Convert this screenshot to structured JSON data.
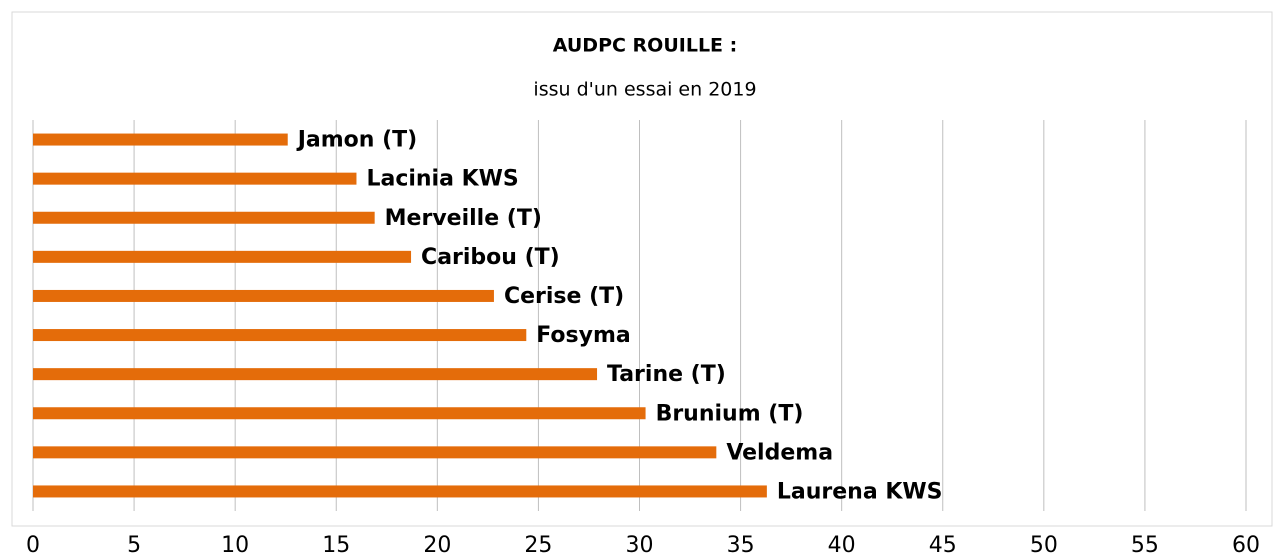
{
  "chart_data": {
    "type": "bar",
    "orientation": "horizontal",
    "title": "AUDPC ROUILLE  :",
    "subtitle": "issu d'un essai en 2019",
    "categories": [
      "Jamon (T)",
      "Lacinia KWS",
      "Merveille (T)",
      "Caribou (T)",
      "Cerise (T)",
      "Fosyma",
      "Tarine (T)",
      "Brunium (T)",
      "Veldema",
      "Laurena KWS"
    ],
    "values": [
      12.6,
      16.0,
      16.9,
      18.7,
      22.8,
      24.4,
      27.9,
      30.3,
      33.8,
      36.3
    ],
    "color": "#e46c0a",
    "xlim": [
      0,
      60
    ],
    "xticks": [
      0,
      5,
      10,
      15,
      20,
      25,
      30,
      35,
      40,
      45,
      50,
      55,
      60
    ],
    "grid": true
  }
}
